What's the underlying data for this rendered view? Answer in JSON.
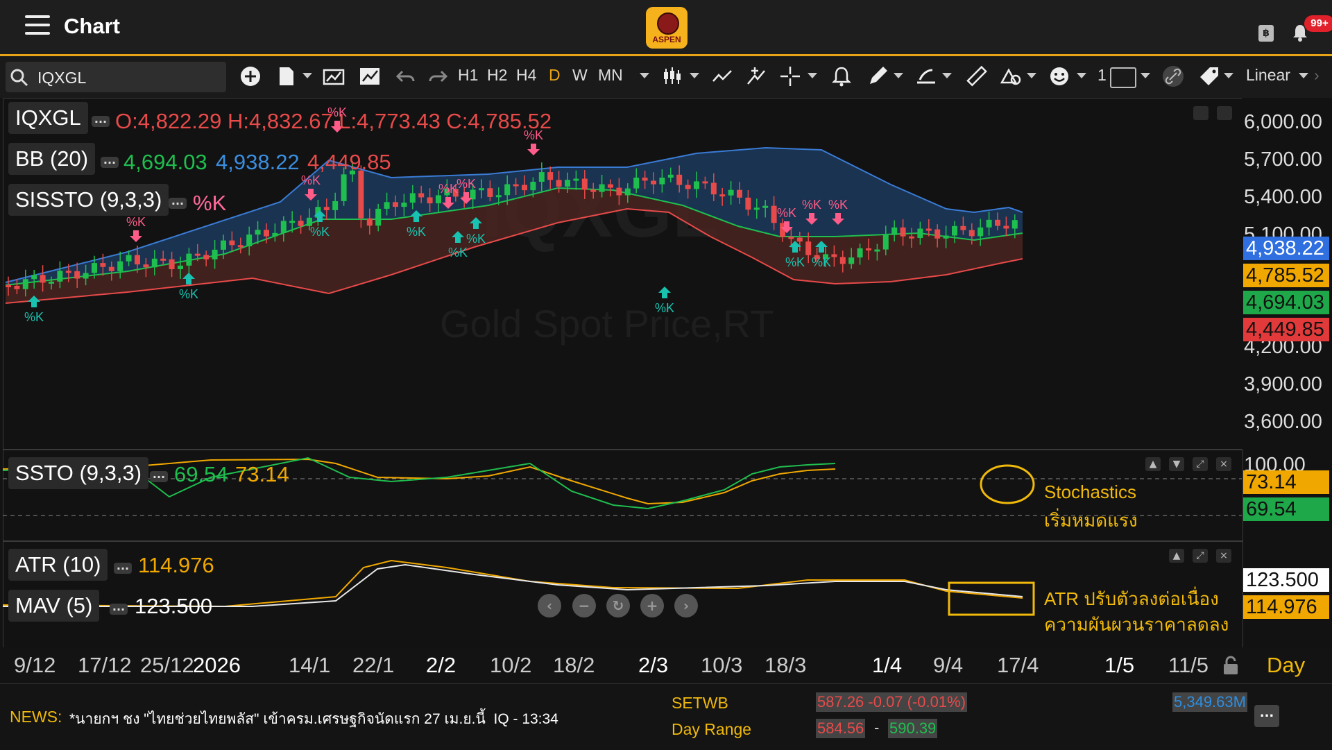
{
  "header": {
    "title": "Chart",
    "logo_text": "ASPEN",
    "notifications": "99+",
    "wallet_symbol": "฿"
  },
  "toolbar": {
    "symbol": "IQXGL",
    "timeframes": [
      "H1",
      "H2",
      "H4",
      "D",
      "W",
      "MN"
    ],
    "active_timeframe": "D",
    "line_width": "1",
    "scale": "Linear"
  },
  "legend": {
    "symbol": "IQXGL",
    "ohlc": "O:4,822.29 H:4,832.67 L:4,773.43 C:4,785.52",
    "bb_label": "BB (20)",
    "bb_mid": "4,694.03",
    "bb_upper": "4,938.22",
    "bb_lower": "4,449.85",
    "sissto_label": "SISSTO (9,3,3)",
    "sissto_value": "%K"
  },
  "price_axis": {
    "ticks": [
      "6,000.00",
      "5,700.00",
      "5,400.00",
      "5,100.00",
      "4,200.00",
      "3,900.00",
      "3,600.00"
    ],
    "tags": [
      {
        "v": "4,938.22",
        "c": "#2f6fe0"
      },
      {
        "v": "4,785.52",
        "c": "#f0a800"
      },
      {
        "v": "4,694.03",
        "c": "#1fa84a"
      },
      {
        "v": "4,449.85",
        "c": "#e23a3a"
      }
    ]
  },
  "watermark": {
    "symbol": "IQXGL",
    "name": "Gold Spot Price,RT"
  },
  "ssto": {
    "label": "SSTO (9,3,3)",
    "k": "69.54",
    "d": "73.14",
    "axis_top": "100.00",
    "tag_d": "73.14",
    "tag_k": "69.54",
    "annotation": [
      "Stochastics",
      "เริ่มหมดแรง"
    ]
  },
  "atr": {
    "label": "ATR (10)",
    "value": "114.976",
    "mav_label": "MAV (5)",
    "mav_value": "123.500",
    "tag_mav": "123.500",
    "tag_atr": "114.976",
    "annotation": [
      "ATR ปรับตัวลงต่อเนื่อง",
      "ความผันผวนราคาลดลง"
    ]
  },
  "signal_label": "%K",
  "time_axis": {
    "labels": [
      "9/12",
      "17/12",
      "25/12",
      "2026",
      "14/1",
      "22/1",
      "2/2",
      "10/2",
      "18/2",
      "2/3",
      "10/3",
      "18/3",
      "1/4",
      "9/4",
      "17/4",
      "1/5",
      "11/5"
    ],
    "period": "Day"
  },
  "news": {
    "label": "NEWS:",
    "headline": "*นายกฯ ชง \"ไทยช่วยไทยพลัส\" เข้าครม.เศรษฐกิจนัดแรก 27 เม.ย.นี้  IQ - 13:34",
    "ticker": "SETWB",
    "range_label": "Day Range",
    "quote": "587.26 -0.07 (-0.01%)",
    "low": "584.56",
    "sep": "-",
    "high": "590.39",
    "volume": "5,349.63M"
  },
  "colors": {
    "accent": "#e8a317",
    "up": "#1fbf4f",
    "down": "#e84a4a",
    "bb_upper": "#3a7bd5",
    "bb_lower": "#e84a4a",
    "bb_mid": "#1fbf4f",
    "signal_up": "#19c2b0",
    "signal_down": "#ff5c8a"
  }
}
